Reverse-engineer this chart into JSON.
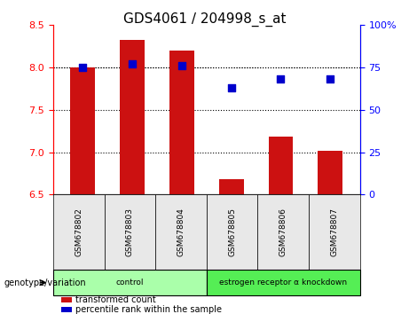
{
  "title": "GDS4061 / 204998_s_at",
  "samples": [
    "GSM678802",
    "GSM678803",
    "GSM678804",
    "GSM678805",
    "GSM678806",
    "GSM678807"
  ],
  "bar_values": [
    8.0,
    8.33,
    8.2,
    6.68,
    7.18,
    7.02
  ],
  "dot_values": [
    75,
    77,
    76,
    63,
    68,
    68
  ],
  "ylim_left": [
    6.5,
    8.5
  ],
  "ylim_right": [
    0,
    100
  ],
  "yticks_left": [
    6.5,
    7.0,
    7.5,
    8.0,
    8.5
  ],
  "yticks_right": [
    0,
    25,
    50,
    75,
    100
  ],
  "bar_color": "#cc1111",
  "dot_color": "#0000cc",
  "bar_bottom": 6.5,
  "groups": [
    {
      "label": "control",
      "indices": [
        0,
        1,
        2
      ],
      "color": "#aaffaa"
    },
    {
      "label": "estrogen receptor α knockdown",
      "indices": [
        3,
        4,
        5
      ],
      "color": "#55ee55"
    }
  ],
  "xlabel_left": "",
  "xlabel_right": "",
  "legend_items": [
    {
      "label": "transformed count",
      "color": "#cc1111",
      "marker": "s"
    },
    {
      "label": "percentile rank within the sample",
      "color": "#0000cc",
      "marker": "s"
    }
  ],
  "genotype_label": "genotype/variation",
  "tick_grid_values": [
    7.0,
    7.5,
    8.0
  ],
  "bg_color": "#e8e8e8"
}
